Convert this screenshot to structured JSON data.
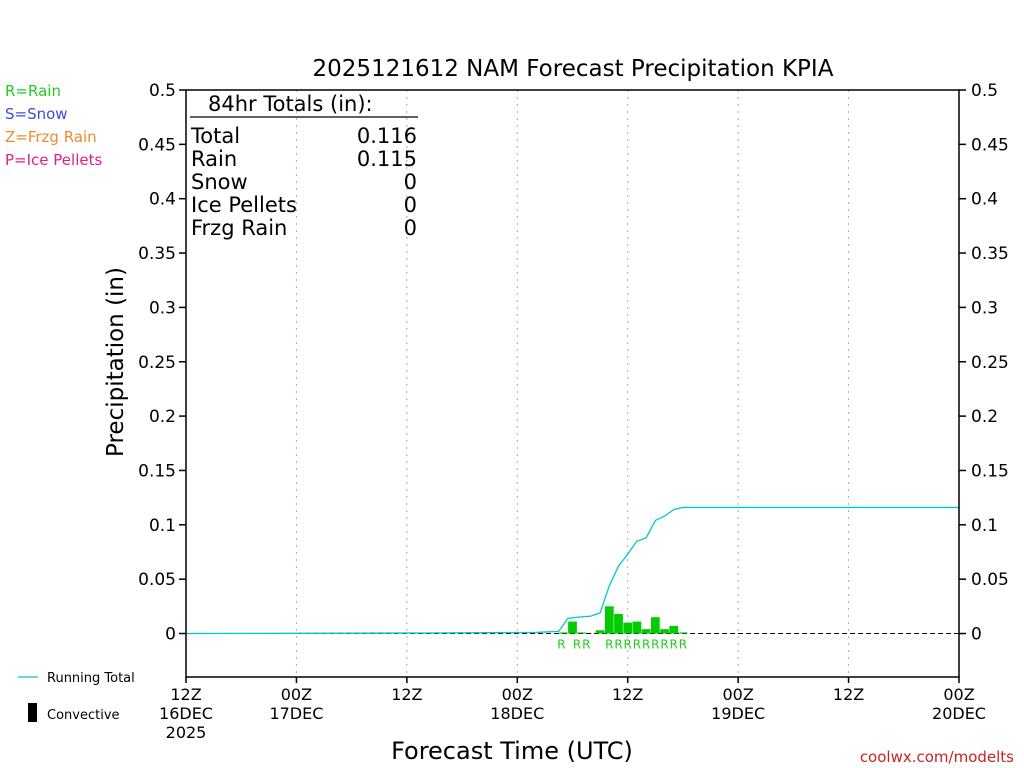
{
  "chart_data": {
    "type": "bar",
    "title": "2025121612 NAM Forecast Precipitation KPIA",
    "xlabel": "Forecast Time (UTC)",
    "ylabel": "Precipitation (in)",
    "ylim": [
      -0.04,
      0.5
    ],
    "yticks": [
      "0.5",
      "0.45",
      "0.4",
      "0.35",
      "0.3",
      "0.25",
      "0.2",
      "0.15",
      "0.1",
      "0.05",
      "0"
    ],
    "ytick_values": [
      0.5,
      0.45,
      0.4,
      0.35,
      0.3,
      0.25,
      0.2,
      0.15,
      0.1,
      0.05,
      0
    ],
    "xlim_hours": [
      0,
      84
    ],
    "xticks": [
      {
        "hour": 0,
        "time": "12Z",
        "date": "16DEC",
        "year": "2025"
      },
      {
        "hour": 12,
        "time": "00Z",
        "date": "17DEC",
        "year": ""
      },
      {
        "hour": 24,
        "time": "12Z",
        "date": "",
        "year": ""
      },
      {
        "hour": 36,
        "time": "00Z",
        "date": "18DEC",
        "year": ""
      },
      {
        "hour": 48,
        "time": "12Z",
        "date": "",
        "year": ""
      },
      {
        "hour": 60,
        "time": "00Z",
        "date": "19DEC",
        "year": ""
      },
      {
        "hour": 72,
        "time": "12Z",
        "date": "",
        "year": ""
      },
      {
        "hour": 84,
        "time": "00Z",
        "date": "20DEC",
        "year": ""
      }
    ],
    "legend_types": [
      {
        "label": "R=Rain",
        "color": "#22cc22"
      },
      {
        "label": "S=Snow",
        "color": "#3a4fd6"
      },
      {
        "label": "Z=Frzg Rain",
        "color": "#ee8a2e"
      },
      {
        "label": "P=Ice Pellets",
        "color": "#e0208c"
      }
    ],
    "legend_bottom": {
      "running_total": "Running Total",
      "convective": "Convective"
    },
    "totals": {
      "header": "84hr Totals (in):",
      "rows": [
        {
          "label": "Total",
          "value": "0.116"
        },
        {
          "label": "Rain",
          "value": "0.115"
        },
        {
          "label": "Snow",
          "value": "0"
        },
        {
          "label": "Ice Pellets",
          "value": "0"
        },
        {
          "label": "Frzg Rain",
          "value": "0"
        }
      ]
    },
    "bars": {
      "name": "Hourly Rain",
      "color": "#00cc00",
      "hours": [
        41,
        42,
        43,
        45,
        46,
        47,
        48,
        49,
        50,
        51,
        52,
        53,
        54
      ],
      "values": [
        0.001,
        0.011,
        0.001,
        0.003,
        0.025,
        0.018,
        0.01,
        0.011,
        0.004,
        0.015,
        0.004,
        0.007,
        0.001
      ]
    },
    "ptype_labels": {
      "color": "#22cc22",
      "hours": [
        40.8,
        42.5,
        43.5,
        46,
        47,
        48,
        49,
        50,
        51,
        52,
        53,
        54
      ],
      "letters": [
        "R",
        "R",
        "R",
        "R",
        "R",
        "R",
        "R",
        "R",
        "R",
        "R",
        "R",
        "R"
      ]
    },
    "running_total": {
      "name": "Running Total",
      "color": "#00c8d0",
      "x": [
        0,
        26,
        38,
        40.5,
        41.5,
        42.5,
        44,
        45,
        46,
        47,
        48,
        49,
        50,
        51,
        52,
        53,
        54,
        84
      ],
      "y": [
        0,
        0.0005,
        0.001,
        0.002,
        0.014,
        0.015,
        0.016,
        0.019,
        0.044,
        0.062,
        0.073,
        0.085,
        0.088,
        0.104,
        0.108,
        0.114,
        0.116,
        0.116
      ]
    },
    "credit": "coolwx.com/modelts"
  }
}
